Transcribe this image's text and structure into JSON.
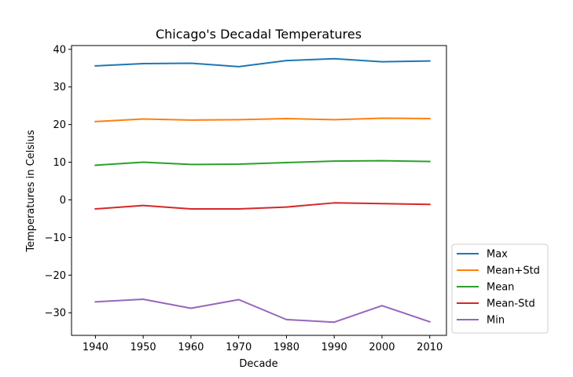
{
  "chart_data": {
    "type": "line",
    "title": "Chicago's Decadal Temperatures",
    "xlabel": "Decade",
    "ylabel": "Temperatures in Celsius",
    "x": [
      1940,
      1950,
      1960,
      1970,
      1980,
      1990,
      2000,
      2010
    ],
    "xlim": [
      1935,
      2013.5
    ],
    "ylim": [
      -36,
      41
    ],
    "xticks": [
      "1940",
      "1950",
      "1960",
      "1970",
      "1980",
      "1990",
      "2000",
      "2010"
    ],
    "yticks": [
      {
        "value": 40,
        "label": "40"
      },
      {
        "value": 30,
        "label": "30"
      },
      {
        "value": 20,
        "label": "20"
      },
      {
        "value": 10,
        "label": "10"
      },
      {
        "value": 0,
        "label": "0"
      },
      {
        "value": -10,
        "label": "−10"
      },
      {
        "value": -20,
        "label": "−20"
      },
      {
        "value": -30,
        "label": "−30"
      }
    ],
    "grid": false,
    "legend_position": "outside-lower-right",
    "series": [
      {
        "name": "Max",
        "color": "#1f77b4",
        "values": [
          35.6,
          36.2,
          36.3,
          35.4,
          37.0,
          37.5,
          36.7,
          36.9
        ]
      },
      {
        "name": "Mean+Std",
        "color": "#ff7f0e",
        "values": [
          20.8,
          21.5,
          21.2,
          21.3,
          21.6,
          21.3,
          21.7,
          21.6
        ]
      },
      {
        "name": "Mean",
        "color": "#2ca02c",
        "values": [
          9.2,
          10.0,
          9.4,
          9.5,
          9.9,
          10.3,
          10.4,
          10.2
        ]
      },
      {
        "name": "Mean-Std",
        "color": "#d62728",
        "values": [
          -2.4,
          -1.5,
          -2.4,
          -2.4,
          -1.9,
          -0.8,
          -1.0,
          -1.2
        ]
      },
      {
        "name": "Min",
        "color": "#9467bd",
        "values": [
          -27.1,
          -26.4,
          -28.8,
          -26.5,
          -31.8,
          -32.5,
          -28.1,
          -32.4
        ]
      }
    ]
  }
}
